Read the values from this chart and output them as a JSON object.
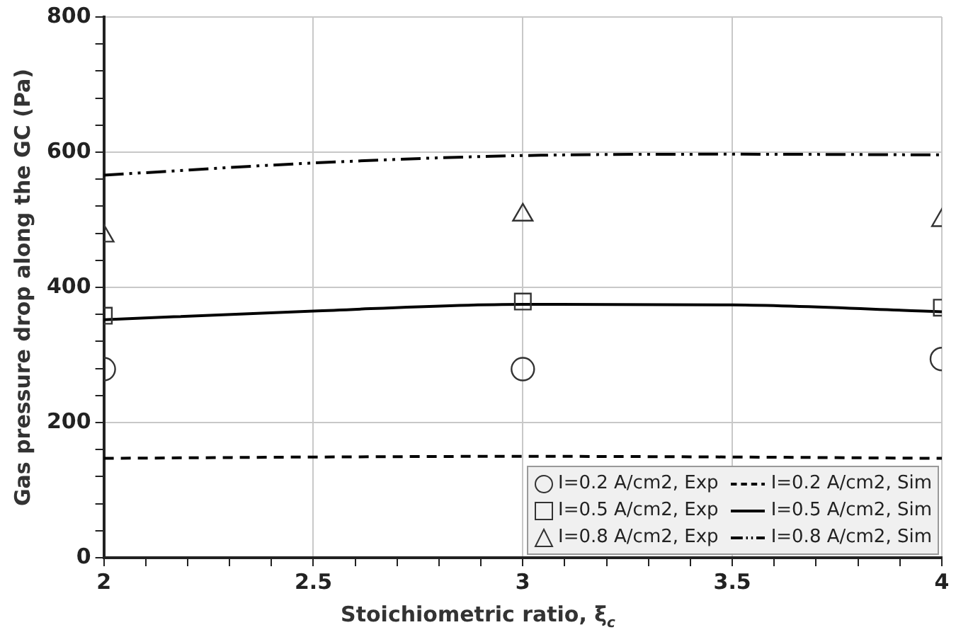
{
  "chart_data": {
    "type": "scatter",
    "xlabel": "Stoichiometric ratio, ξ$_{c}$",
    "ylabel": "Gas pressure drop along the GC (Pa)",
    "xlim": [
      2,
      4
    ],
    "xticks": [
      2,
      {
        "value": 2.1,
        "label": null
      },
      {
        "value": 2.2,
        "label": null
      },
      {
        "value": 2.3,
        "label": null
      },
      {
        "value": 2.4,
        "label": null
      },
      2.5,
      {
        "value": 2.6,
        "label": null
      },
      {
        "value": 2.7,
        "label": null
      },
      {
        "value": 2.8,
        "label": null
      },
      {
        "value": 2.9,
        "label": null
      },
      3,
      {
        "value": 3.1,
        "label": null
      },
      {
        "value": 3.2,
        "label": null
      },
      {
        "value": 3.3,
        "label": null
      },
      {
        "value": 3.4,
        "label": null
      },
      3.5,
      {
        "value": 3.6,
        "label": null
      },
      {
        "value": 3.7,
        "label": null
      },
      {
        "value": 3.8,
        "label": null
      },
      {
        "value": 3.9,
        "label": null
      },
      4
    ],
    "ylim": [
      0,
      800
    ],
    "yticks": [
      0,
      {
        "value": 40,
        "label": null
      },
      {
        "value": 80,
        "label": null
      },
      {
        "value": 120,
        "label": null
      },
      {
        "value": 160,
        "label": null
      },
      200,
      {
        "value": 240,
        "label": null
      },
      {
        "value": 280,
        "label": null
      },
      {
        "value": 320,
        "label": null
      },
      {
        "value": 360,
        "label": null
      },
      400,
      {
        "value": 440,
        "label": null
      },
      {
        "value": 480,
        "label": null
      },
      {
        "value": 520,
        "label": null
      },
      {
        "value": 560,
        "label": null
      },
      600,
      {
        "value": 640,
        "label": null
      },
      {
        "value": 680,
        "label": null
      },
      {
        "value": 720,
        "label": null
      },
      {
        "value": 760,
        "label": null
      },
      800
    ],
    "grid": true,
    "legend": "bottom right",
    "series": [
      {
        "name": "I=0.2 A/cm2, Exp",
        "type": "scatter",
        "marker": "circle",
        "color": "#333333",
        "x": [
          2,
          3,
          4
        ],
        "values": [
          279,
          279,
          294
        ]
      },
      {
        "name": "I=0.5 A/cm2, Exp",
        "type": "scatter",
        "marker": "square",
        "color": "#333333",
        "x": [
          2,
          3,
          4
        ],
        "values": [
          358,
          379,
          370
        ]
      },
      {
        "name": "I=0.8 A/cm2, Exp",
        "type": "scatter",
        "marker": "triangle",
        "color": "#333333",
        "x": [
          2,
          3,
          4
        ],
        "values": [
          476,
          507,
          499
        ]
      },
      {
        "name": "I=0.2 A/cm2, Sim",
        "type": "line",
        "line_style": "dashed",
        "color": "#000000",
        "x": [
          2,
          2.5,
          3,
          3.5,
          4
        ],
        "values": [
          147,
          149,
          150,
          149,
          147
        ]
      },
      {
        "name": "I=0.5 A/cm2, Sim",
        "type": "line",
        "line_style": "solid",
        "color": "#000000",
        "x": [
          2,
          2.5,
          3,
          3.5,
          4
        ],
        "values": [
          352,
          365,
          375,
          374,
          364
        ]
      },
      {
        "name": "I=0.8 A/cm2, Sim",
        "type": "line",
        "line_style": "dashdot",
        "color": "#000000",
        "x": [
          2,
          2.5,
          3,
          3.5,
          4
        ],
        "values": [
          566,
          584,
          595,
          597,
          596
        ]
      }
    ]
  }
}
